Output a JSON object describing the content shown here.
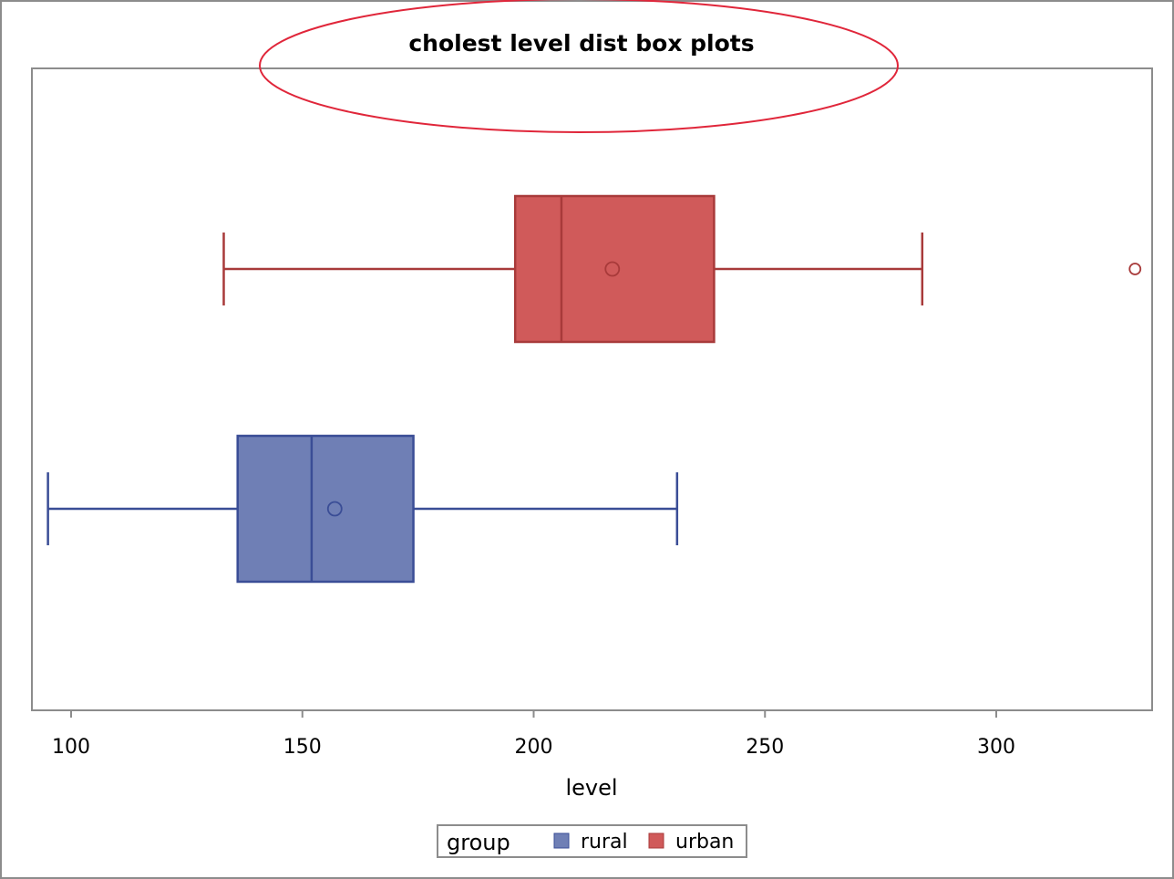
{
  "chart_data": {
    "type": "box",
    "orientation": "horizontal",
    "title": "cholest level dist box plots",
    "xlabel": "level",
    "ylabel": "",
    "xlim": [
      91,
      332
    ],
    "x_ticks": [
      100,
      150,
      200,
      250,
      300
    ],
    "grid": false,
    "legend": {
      "title": "group",
      "placement": "bottom-center",
      "entries": [
        {
          "label": "rural",
          "color": "#6f7fb5"
        },
        {
          "label": "urban",
          "color": "#d05a5a"
        }
      ]
    },
    "series": [
      {
        "name": "urban",
        "color": "#d05a5a",
        "edge_color": "#a83a3a",
        "whisker_low": 133,
        "q1": 196,
        "median": 206,
        "mean": 217,
        "q3": 239,
        "whisker_high": 284,
        "outliers": [
          330
        ]
      },
      {
        "name": "rural",
        "color": "#6f7fb5",
        "edge_color": "#3a4d96",
        "whisker_low": 95,
        "q1": 136,
        "median": 152,
        "mean": 157,
        "q3": 174,
        "whisker_high": 231,
        "outliers": []
      }
    ],
    "annotation": {
      "shape": "ellipse",
      "color": "#e0263a",
      "encloses": "title"
    }
  }
}
